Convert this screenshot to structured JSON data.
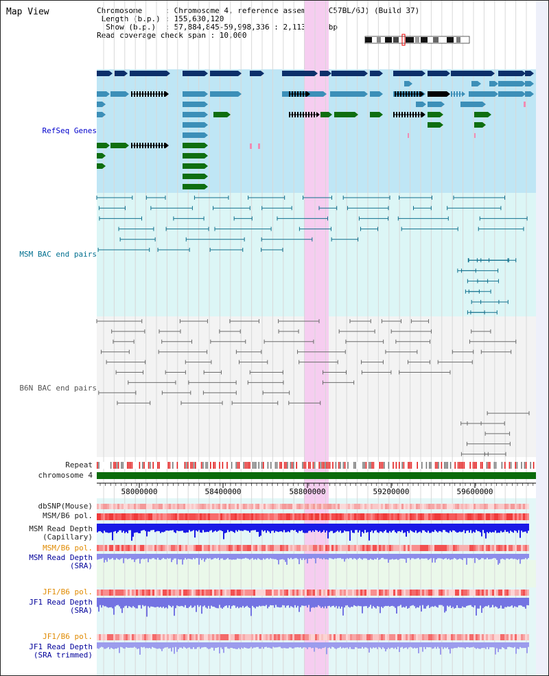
{
  "header": {
    "title": "Map View",
    "lines": [
      "Chromosome     : Chromosome 4, reference assembly (C57BL/6J) (Build 37)",
      " Length (b.p.) : 155,630,120",
      "  Show (b.p.)  : 57,884,845-59,998,336 : 2,113,492 bp",
      "Read coverage check span : 10,000"
    ]
  },
  "tracks": {
    "refseq": "RefSeq Genes",
    "msm_bac": "MSM BAC end pairs",
    "b6n_bac": "B6N BAC end pairs",
    "repeat": "Repeat",
    "chromosome": "chromosome 4",
    "dbsnp": "dbSNP(Mouse)",
    "msm_b6_pol": "MSM/B6 pol.",
    "msm_depth_cap": "MSM Read Depth\n(Capillary)",
    "msm_b6_pol_sra": "MSM/B6 pol.",
    "msm_depth_sra": "MSM Read Depth\n(SRA)",
    "jf1_b6_pol": "JF1/B6 pol.",
    "jf1_depth_sra": "JF1 Read Depth\n(SRA)",
    "jf1_b6_pol_trim": "JF1/B6 pol.",
    "jf1_depth_trim": "JF1 Read Depth\n(SRA trimmed)"
  },
  "axis": {
    "ticks": [
      "58000000",
      "58400000",
      "58800000",
      "59200000",
      "59600000"
    ]
  },
  "colors": {
    "refseq_bg": "#bfe6f5",
    "msm_bg": "#dcf6f6",
    "b6n_bg": "#f3f3f3",
    "highlight": "#f6cdf0",
    "gene_dark": "#0c2f6a",
    "gene_mid": "#3c8fb8",
    "gene_green": "#0f6e0f",
    "chromosome": "#0b6b0b"
  }
}
